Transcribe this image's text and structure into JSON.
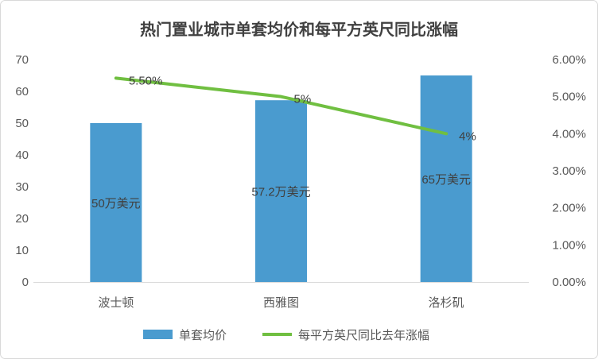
{
  "chart_data": {
    "type": "bar+line",
    "title": "热门置业城市单套均价和每平方英尺同比涨幅",
    "categories": [
      "波士顿",
      "西雅图",
      "洛杉矶"
    ],
    "series": [
      {
        "name": "单套均价",
        "type": "bar",
        "axis": "left",
        "values": [
          50,
          57.2,
          65
        ],
        "labels": [
          "50万美元",
          "57.2万美元",
          "65万美元"
        ],
        "color": "#4a9bcf"
      },
      {
        "name": "每平方英尺同比去年涨幅",
        "type": "line",
        "axis": "right",
        "values": [
          5.5,
          5,
          4
        ],
        "labels": [
          "5.50%",
          "5%",
          "4%"
        ],
        "color": "#70bf41"
      }
    ],
    "left_axis": {
      "ylim": [
        0,
        70
      ],
      "ticks": [
        "0",
        "10",
        "20",
        "30",
        "40",
        "50",
        "60",
        "70"
      ]
    },
    "right_axis": {
      "ylim": [
        0,
        6
      ],
      "ticks": [
        "0.00%",
        "1.00%",
        "2.00%",
        "3.00%",
        "4.00%",
        "5.00%",
        "6.00%"
      ]
    },
    "grid": false,
    "legend": "bottom"
  }
}
